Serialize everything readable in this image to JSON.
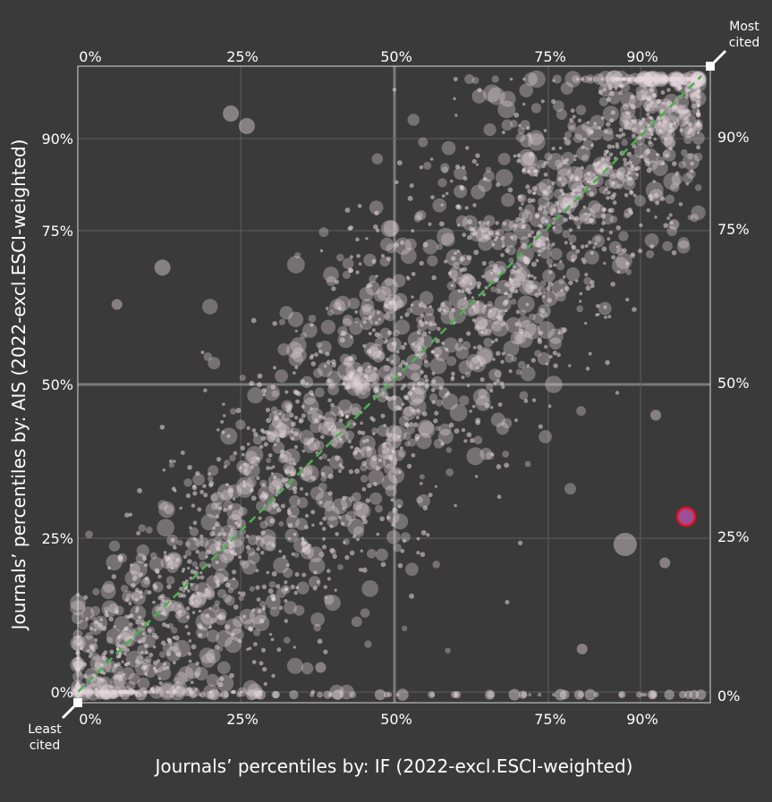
{
  "chart_data": {
    "type": "scatter",
    "xlabel": "Journals’ percentiles by: IF (2022-excl.ESCI-weighted)",
    "ylabel": "Journals’ percentiles by: AIS (2022-excl.ESCI-weighted)",
    "axis_scale": "percentile",
    "xlim": [
      0,
      100
    ],
    "ylim": [
      0,
      100
    ],
    "tick_values": [
      0,
      25,
      50,
      75,
      90
    ],
    "x_ticks_bottom": [
      "0%",
      "25%",
      "50%",
      "75%",
      "90%"
    ],
    "x_ticks_top": [
      "0%",
      "25%",
      "50%",
      "75%",
      "90%"
    ],
    "y_ticks_left": [
      "0%",
      "25%",
      "50%",
      "75%",
      "90%"
    ],
    "y_ticks_right": [
      "0%",
      "25%",
      "50%",
      "75%",
      "90%"
    ],
    "grid": true,
    "diagonal_reference_line": {
      "from": [
        0,
        0
      ],
      "to": [
        100,
        100
      ],
      "style": "dashed",
      "color": "#4caf50"
    },
    "corner_labels": {
      "top_right": [
        "Most",
        "cited"
      ],
      "bottom_left": [
        "Least",
        "cited"
      ]
    },
    "point_color": "#e6d8dc",
    "highlighted_point": {
      "x": 97.5,
      "y": 28.5,
      "fill": "#9c4f96",
      "stroke": "#e8101e"
    },
    "notable_points": [
      {
        "x": 23.5,
        "y": 94,
        "size": "medium"
      },
      {
        "x": 26,
        "y": 92,
        "size": "medium"
      },
      {
        "x": 13,
        "y": 69,
        "size": "medium"
      },
      {
        "x": 6,
        "y": 63,
        "size": "small"
      },
      {
        "x": 87.5,
        "y": 24,
        "size": "large"
      },
      {
        "x": 95.5,
        "y": 76,
        "size": "small"
      },
      {
        "x": 92.5,
        "y": 45,
        "size": "small"
      },
      {
        "x": 94,
        "y": 21,
        "size": "small"
      },
      {
        "x": 80.5,
        "y": 7,
        "size": "small"
      },
      {
        "x": 38,
        "y": 4,
        "size": "small"
      }
    ]
  }
}
